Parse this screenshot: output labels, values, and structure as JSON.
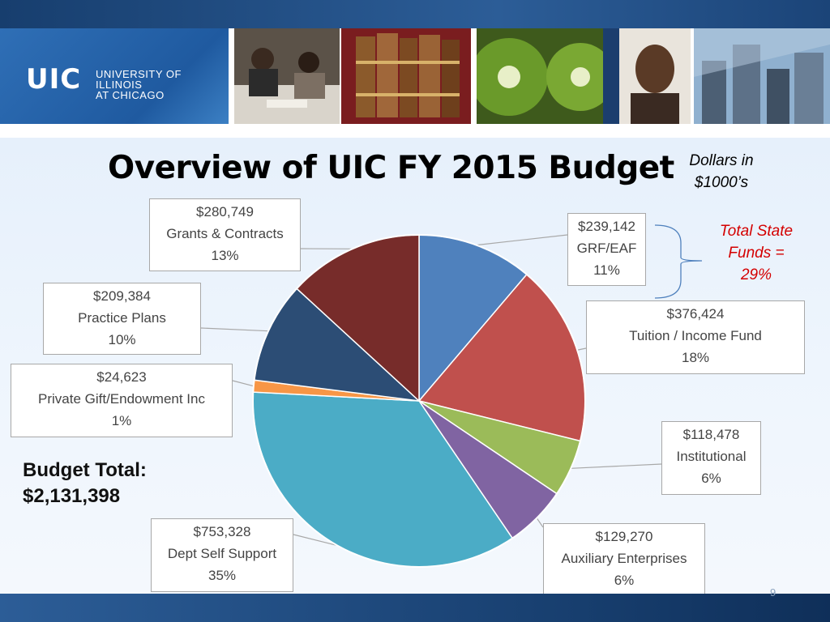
{
  "header": {
    "logo_mark": "UIC",
    "logo_text_line1": "UNIVERSITY OF ILLINOIS",
    "logo_text_line2": "AT CHICAGO"
  },
  "slide": {
    "title": "Overview of UIC FY 2015 Budget",
    "units_line1": "Dollars in",
    "units_line2": "$1000’s",
    "state_note_line1": "Total State",
    "state_note_line2": "Funds =",
    "state_note_line3": "29%",
    "budget_total_line1": "Budget Total:",
    "budget_total_line2": "$2,131,398",
    "slide_number": "9"
  },
  "chart_data": {
    "type": "pie",
    "title": "",
    "slices": [
      {
        "label": "GRF/EAF",
        "amount": "$239,142",
        "value": 239142,
        "percent": "11%",
        "color": "#4f81bd"
      },
      {
        "label": "Tuition / Income Fund",
        "amount": "$376,424",
        "value": 376424,
        "percent": "18%",
        "color": "#c0504d"
      },
      {
        "label": "Institutional",
        "amount": "$118,478",
        "value": 118478,
        "percent": "6%",
        "color": "#9bbb59"
      },
      {
        "label": "Auxiliary Enterprises",
        "amount": "$129,270",
        "value": 129270,
        "percent": "6%",
        "color": "#8064a2"
      },
      {
        "label": "Dept Self Support",
        "amount": "$753,328",
        "value": 753328,
        "percent": "35%",
        "color": "#4bacc6"
      },
      {
        "label": "Private Gift/Endowment Inc",
        "amount": "$24,623",
        "value": 24623,
        "percent": "1%",
        "color": "#f79646"
      },
      {
        "label": "Practice Plans",
        "amount": "$209,384",
        "value": 209384,
        "percent": "10%",
        "color": "#2c4d75"
      },
      {
        "label": "Grants & Contracts",
        "amount": "$280,749",
        "value": 280749,
        "percent": "13%",
        "color": "#772c2a"
      }
    ],
    "start_angle": "12 o'clock",
    "direction": "clockwise"
  }
}
